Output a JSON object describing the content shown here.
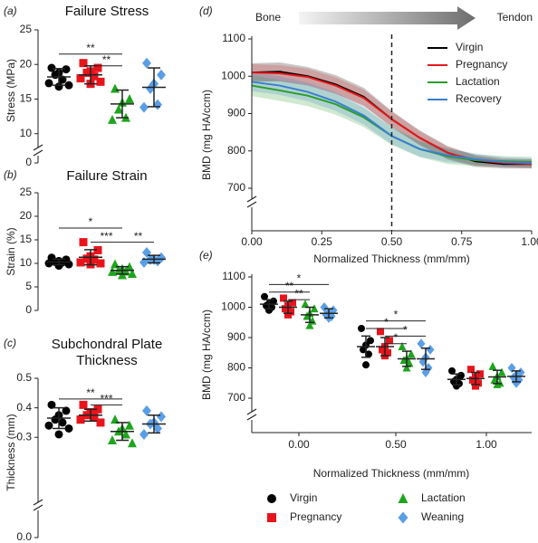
{
  "chart_data": [
    {
      "type": "dot",
      "panel": "(a)",
      "title": "Failure Stress",
      "y_label": "Stress (MPa)",
      "ylim": [
        0,
        25
      ],
      "axis_break": [
        0,
        8
      ],
      "yticks": [
        0,
        10,
        15,
        20,
        25
      ],
      "series": [
        {
          "color": "#000000",
          "marker": "circle",
          "values": [
            19.5,
            19.3,
            18.8,
            18.5,
            17.8,
            17.3,
            17,
            16.8
          ],
          "mean": 18.2,
          "sd": 1.2
        },
        {
          "color": "#e8141c",
          "marker": "square",
          "values": [
            20.2,
            19.5,
            19,
            18.8,
            18.3,
            18,
            17.5,
            17.2
          ],
          "mean": 18.5,
          "sd": 1.3
        },
        {
          "color": "#1ea51e",
          "marker": "triangle",
          "values": [
            16.5,
            15,
            14.5,
            13.5,
            12.3,
            12
          ],
          "mean": 14.3,
          "sd": 2
        },
        {
          "color": "#5a9ee6",
          "marker": "diamond",
          "values": [
            20.2,
            18.5,
            17.2,
            16.5,
            14.2,
            13.8
          ],
          "mean": 16.7,
          "sd": 2.8
        }
      ],
      "significance": [
        {
          "label": "**",
          "from": 0,
          "to": 2,
          "y": 21.5
        },
        {
          "label": "**",
          "from": 1,
          "to": 2,
          "y": 19.8
        }
      ]
    },
    {
      "type": "dot",
      "panel": "(b)",
      "title": "Failure Strain",
      "y_label": "Strain (%)",
      "ylim": [
        0,
        25
      ],
      "yticks": [
        0,
        5,
        10,
        15,
        20,
        25
      ],
      "series": [
        {
          "color": "#000000",
          "marker": "circle",
          "values": [
            11.2,
            10.8,
            10.5,
            10.3,
            10.2,
            10,
            9.8,
            9.5
          ],
          "mean": 10.3,
          "sd": 0.6
        },
        {
          "color": "#e8141c",
          "marker": "square",
          "values": [
            14.5,
            12.8,
            11.5,
            11,
            10.8,
            10.2,
            10,
            9.8
          ],
          "mean": 11.3,
          "sd": 1.6
        },
        {
          "color": "#1ea51e",
          "marker": "triangle",
          "values": [
            9.8,
            9.2,
            8.8,
            8.5,
            8.3,
            8.2,
            7.8,
            7.5
          ],
          "mean": 8.5,
          "sd": 0.8
        },
        {
          "color": "#5a9ee6",
          "marker": "diamond",
          "values": [
            12.3,
            11.2,
            10.8,
            10.8,
            10.5,
            10.2
          ],
          "mean": 10.9,
          "sd": 0.8
        }
      ],
      "significance": [
        {
          "label": "*",
          "from": 0,
          "to": 2,
          "y": 17.5
        },
        {
          "label": "***",
          "from": 1,
          "to": 2,
          "y": 14.5
        },
        {
          "label": "**",
          "from": 2,
          "to": 3,
          "y": 14.5
        }
      ]
    },
    {
      "type": "dot",
      "panel": "(c)",
      "title": "Subchondral Plate Thickness",
      "y_label": "Thickness (mm)",
      "ylim": [
        0,
        0.5
      ],
      "axis_break": [
        0,
        0.08
      ],
      "yticks": [
        {
          "value": 0,
          "label": "0.0"
        },
        0.3,
        0.4,
        0.5
      ],
      "series": [
        {
          "color": "#000000",
          "marker": "circle",
          "values": [
            0.41,
            0.39,
            0.375,
            0.36,
            0.35,
            0.34,
            0.33,
            0.31
          ],
          "mean": 0.365,
          "sd": 0.035
        },
        {
          "color": "#e8141c",
          "marker": "square",
          "values": [
            0.41,
            0.395,
            0.385,
            0.375,
            0.37,
            0.36,
            0.35
          ],
          "mean": 0.375,
          "sd": 0.02
        },
        {
          "color": "#1ea51e",
          "marker": "triangle",
          "values": [
            0.36,
            0.34,
            0.33,
            0.32,
            0.31,
            0.29,
            0.28
          ],
          "mean": 0.32,
          "sd": 0.03
        },
        {
          "color": "#5a9ee6",
          "marker": "diamond",
          "values": [
            0.39,
            0.37,
            0.35,
            0.345,
            0.33,
            0.31
          ],
          "mean": 0.345,
          "sd": 0.03
        }
      ],
      "significance": [
        {
          "label": "**",
          "from": 0,
          "to": 2,
          "y": 0.43
        },
        {
          "label": "***",
          "from": 1,
          "to": 2,
          "y": 0.41
        }
      ]
    },
    {
      "type": "line",
      "panel": "(d)",
      "y_label": "BMD  (mg  HA/ccm)",
      "x_label": "Normalized  Thickness (mm/mm)",
      "annotations": [
        "Bone",
        "Tendon"
      ],
      "legend": "upper right",
      "vline": 0.5,
      "x": [
        0,
        0.1,
        0.2,
        0.3,
        0.4,
        0.5,
        0.6,
        0.7,
        0.8,
        0.9,
        1
      ],
      "xlim": [
        0,
        1
      ],
      "xticks": [
        {
          "value": 0,
          "label": "0.00"
        },
        {
          "value": 0.25,
          "label": "0.25"
        },
        {
          "value": 0.5,
          "label": "0.50"
        },
        {
          "value": 0.75,
          "label": "0.75"
        },
        {
          "value": 1,
          "label": "1.00"
        }
      ],
      "ylim": [
        700,
        1100
      ],
      "yticks": [
        700,
        800,
        900,
        1000,
        1100
      ],
      "series": [
        {
          "name": "Virgin",
          "color": "#000000",
          "values": [
            1010,
            1012,
            1000,
            978,
            945,
            885,
            835,
            795,
            772,
            765,
            765
          ],
          "sd": [
            25,
            25,
            25,
            25,
            24,
            22,
            20,
            18,
            15,
            12,
            12
          ]
        },
        {
          "name": "Pregnancy",
          "color": "#e41a1c",
          "values": [
            1010,
            1008,
            998,
            975,
            942,
            885,
            835,
            795,
            775,
            768,
            765
          ],
          "sd": [
            22,
            22,
            22,
            22,
            22,
            20,
            18,
            16,
            14,
            12,
            12
          ]
        },
        {
          "name": "Lactation",
          "color": "#2a9d2a",
          "values": [
            975,
            962,
            948,
            925,
            890,
            840,
            805,
            785,
            775,
            772,
            770
          ],
          "sd": [
            28,
            28,
            28,
            28,
            26,
            24,
            22,
            20,
            16,
            14,
            14
          ]
        },
        {
          "name": "Recovery",
          "color": "#3a7fd0",
          "values": [
            985,
            975,
            958,
            932,
            895,
            840,
            805,
            788,
            778,
            770,
            768
          ],
          "sd": [
            25,
            25,
            25,
            25,
            24,
            22,
            20,
            18,
            15,
            13,
            13
          ]
        }
      ]
    },
    {
      "type": "grouped_dot",
      "panel": "(e)",
      "y_label": "BMD  (mg  HA/ccm)",
      "x_label": "Normalized Thickness (mm/mm)",
      "categories": [
        "0.00",
        "0.50",
        "1.00"
      ],
      "ylim": [
        700,
        1100
      ],
      "yticks": [
        700,
        800,
        900,
        1000,
        1100
      ],
      "series": [
        {
          "name": "Virgin",
          "color": "#000000",
          "marker": "circle",
          "values": [
            [
              1035,
              1020,
              1012,
              1005,
              1000,
              990
            ],
            [
              930,
              890,
              875,
              860,
              845,
              810
            ],
            [
              790,
              775,
              762,
              755,
              748,
              740
            ]
          ],
          "mean": [
            1010,
            870,
            762
          ],
          "sd": [
            15,
            35,
            18
          ]
        },
        {
          "name": "Pregnancy",
          "color": "#e8141c",
          "marker": "square",
          "values": [
            [
              1030,
              1015,
              1005,
              995,
              985,
              975
            ],
            [
              920,
              890,
              870,
              860,
              850,
              840
            ],
            [
              795,
              780,
              770,
              760,
              750,
              740
            ]
          ],
          "mean": [
            1000,
            870,
            765
          ],
          "sd": [
            20,
            30,
            20
          ]
        },
        {
          "name": "Lactation",
          "color": "#1ea51e",
          "marker": "triangle",
          "values": [
            [
              1010,
              995,
              980,
              970,
              955,
              940
            ],
            [
              870,
              845,
              830,
              825,
              815,
              800
            ],
            [
              805,
              785,
              772,
              760,
              750,
              745
            ]
          ],
          "mean": [
            975,
            830,
            770
          ],
          "sd": [
            25,
            25,
            22
          ]
        },
        {
          "name": "Weaning",
          "color": "#5a9ee6",
          "marker": "diamond",
          "values": [
            [
              1000,
              990,
              982,
              975,
              970,
              965
            ],
            [
              880,
              860,
              835,
              820,
              800,
              785
            ],
            [
              800,
              785,
              775,
              768,
              760,
              750
            ]
          ],
          "mean": [
            980,
            830,
            772
          ],
          "sd": [
            15,
            35,
            18
          ]
        }
      ],
      "significance": [
        {
          "label": "*",
          "category": 0,
          "from": 0,
          "to": 3,
          "y": 1075
        },
        {
          "label": "**",
          "category": 0,
          "from": 0,
          "to": 2,
          "y": 1050
        },
        {
          "label": "**",
          "category": 0,
          "from": 1,
          "to": 2,
          "y": 1025
        },
        {
          "label": "*",
          "category": 1,
          "from": 0,
          "to": 3,
          "y": 955
        },
        {
          "label": "*",
          "category": 1,
          "from": 0,
          "to": 2,
          "y": 930
        },
        {
          "label": "*",
          "category": 1,
          "from": 1,
          "to": 3,
          "y": 905
        },
        {
          "label": "*",
          "category": 1,
          "from": 1,
          "to": 2,
          "y": 880
        }
      ]
    }
  ]
}
